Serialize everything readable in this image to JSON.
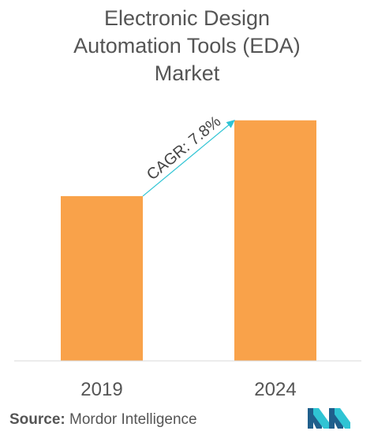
{
  "title_lines": [
    "Electronic Design",
    "Automation Tools (EDA)",
    "Market"
  ],
  "chart_data": {
    "type": "bar",
    "title": "Electronic Design Automation Tools (EDA) Market",
    "categories": [
      "2019",
      "2024"
    ],
    "values": [
      1.0,
      1.46
    ],
    "ylim": [
      0,
      1.65
    ],
    "grid": false,
    "legend": "none",
    "bar_color": "#F9A24A",
    "annotation": {
      "text": "CAGR: 7.8%",
      "from_category": "2019",
      "to_category": "2024",
      "arrow_color": "#2FC4D4"
    }
  },
  "source": {
    "label": "Source:",
    "value": "Mordor Intelligence"
  },
  "logo": {
    "icon": "mordor-intelligence-logo",
    "color": "#2FC4D4"
  }
}
